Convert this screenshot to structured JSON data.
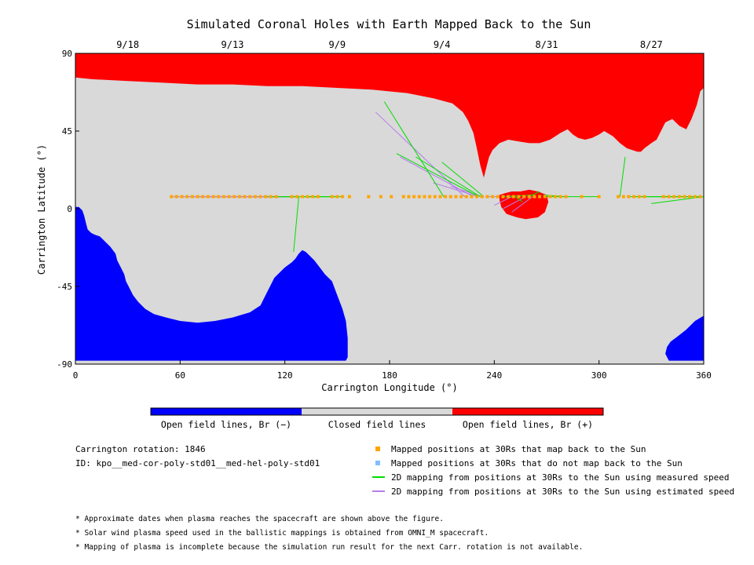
{
  "chart_data": {
    "type": "map",
    "title": "Simulated Coronal Holes with Earth Mapped Back to the Sun",
    "xlabel": "Carrington Longitude (°)",
    "ylabel": "Carrington Latitude (°)",
    "xlim": [
      0,
      360
    ],
    "ylim": [
      -90,
      90
    ],
    "x_ticks": [
      "0",
      "60",
      "120",
      "180",
      "240",
      "300",
      "360"
    ],
    "y_ticks": [
      "90",
      "45",
      "0",
      "-45",
      "-90"
    ],
    "top_dates": [
      {
        "label": "9/18",
        "lon": 30
      },
      {
        "label": "9/13",
        "lon": 90
      },
      {
        "label": "9/9",
        "lon": 150
      },
      {
        "label": "9/4",
        "lon": 210
      },
      {
        "label": "8/31",
        "lon": 270
      },
      {
        "label": "8/27",
        "lon": 330
      }
    ],
    "colorbar": [
      "Open field lines, Br (−)",
      "Closed field lines",
      "Open field lines, Br (+)"
    ],
    "colors": {
      "negative": "#0000ff",
      "closed": "#d9d9d9",
      "positive": "#ff0000",
      "mapped": "#ffa500",
      "unmapped": "#7fbfff",
      "measured": "#00dd00",
      "estimated": "#b57eea"
    },
    "regions": {
      "positive_open": [
        [
          [
            0,
            90
          ],
          [
            360,
            90
          ],
          [
            360,
            70
          ],
          [
            358,
            68
          ],
          [
            356,
            60
          ],
          [
            353,
            52
          ],
          [
            350,
            46
          ],
          [
            346,
            48
          ],
          [
            342,
            52
          ],
          [
            338,
            50
          ],
          [
            335,
            44
          ],
          [
            333,
            40
          ],
          [
            330,
            38
          ],
          [
            326,
            35
          ],
          [
            324,
            33
          ],
          [
            322,
            33
          ],
          [
            316,
            35
          ],
          [
            312,
            38
          ],
          [
            308,
            42
          ],
          [
            303,
            45
          ],
          [
            300,
            43
          ],
          [
            296,
            41
          ],
          [
            292,
            40
          ],
          [
            288,
            41
          ],
          [
            285,
            43
          ],
          [
            282,
            46
          ],
          [
            278,
            44
          ],
          [
            272,
            40
          ],
          [
            266,
            38
          ],
          [
            260,
            38
          ],
          [
            254,
            39
          ],
          [
            248,
            40
          ],
          [
            243,
            38
          ],
          [
            239,
            34
          ],
          [
            237,
            30
          ],
          [
            236,
            26
          ],
          [
            235,
            22
          ],
          [
            234,
            18
          ],
          [
            232,
            25
          ],
          [
            230,
            35
          ],
          [
            228,
            44
          ],
          [
            225,
            51
          ],
          [
            222,
            56
          ],
          [
            216,
            61
          ],
          [
            205,
            64
          ],
          [
            190,
            67
          ],
          [
            170,
            69
          ],
          [
            150,
            70
          ],
          [
            130,
            71
          ],
          [
            110,
            71
          ],
          [
            90,
            72
          ],
          [
            70,
            72
          ],
          [
            50,
            73
          ],
          [
            30,
            74
          ],
          [
            10,
            75
          ],
          [
            0,
            76
          ]
        ],
        [
          [
            243,
            8
          ],
          [
            246,
            9
          ],
          [
            250,
            10
          ],
          [
            255,
            10
          ],
          [
            260,
            11
          ],
          [
            265,
            10
          ],
          [
            270,
            8
          ],
          [
            271,
            4
          ],
          [
            269,
            -2
          ],
          [
            265,
            -5
          ],
          [
            258,
            -6
          ],
          [
            253,
            -5
          ],
          [
            247,
            -3
          ],
          [
            244,
            1
          ],
          [
            243,
            5
          ]
        ]
      ],
      "negative_open": [
        [
          [
            0,
            1
          ],
          [
            2,
            1
          ],
          [
            4,
            -1
          ],
          [
            5,
            -4
          ],
          [
            6,
            -8
          ],
          [
            7,
            -12
          ],
          [
            9,
            -14
          ],
          [
            11,
            -15
          ],
          [
            14,
            -16
          ],
          [
            16,
            -18
          ],
          [
            20,
            -22
          ],
          [
            23,
            -26
          ],
          [
            24,
            -30
          ],
          [
            26,
            -34
          ],
          [
            28,
            -38
          ],
          [
            29,
            -42
          ],
          [
            31,
            -46
          ],
          [
            33,
            -50
          ],
          [
            36,
            -54
          ],
          [
            40,
            -58
          ],
          [
            45,
            -61
          ],
          [
            52,
            -63
          ],
          [
            60,
            -65
          ],
          [
            70,
            -66
          ],
          [
            80,
            -65
          ],
          [
            90,
            -63
          ],
          [
            100,
            -60
          ],
          [
            106,
            -56
          ],
          [
            108,
            -52
          ],
          [
            110,
            -48
          ],
          [
            112,
            -44
          ],
          [
            114,
            -40
          ],
          [
            117,
            -37
          ],
          [
            120,
            -34
          ],
          [
            124,
            -31
          ],
          [
            126,
            -29
          ],
          [
            128,
            -26
          ],
          [
            130,
            -24
          ],
          [
            132,
            -25
          ],
          [
            134,
            -27
          ],
          [
            137,
            -30
          ],
          [
            140,
            -34
          ],
          [
            143,
            -38
          ],
          [
            147,
            -42
          ],
          [
            150,
            -50
          ],
          [
            153,
            -58
          ],
          [
            155,
            -65
          ],
          [
            156,
            -75
          ],
          [
            156,
            -86
          ],
          [
            155,
            -88
          ],
          [
            0,
            -88
          ]
        ],
        [
          [
            338,
            -84
          ],
          [
            339,
            -80
          ],
          [
            341,
            -77
          ],
          [
            345,
            -74
          ],
          [
            350,
            -70
          ],
          [
            355,
            -65
          ],
          [
            360,
            -62
          ],
          [
            360,
            -88
          ],
          [
            340,
            -88
          ]
        ]
      ]
    },
    "mapped_points": {
      "lat": 7,
      "lon": [
        55,
        58,
        61,
        64,
        67,
        70,
        73,
        76,
        79,
        82,
        85,
        88,
        91,
        94,
        97,
        100,
        103,
        106,
        109,
        112,
        115,
        124,
        127,
        130,
        133,
        136,
        139,
        147,
        150,
        153,
        157,
        168,
        175,
        181,
        188,
        191,
        194,
        197,
        200,
        203,
        206,
        209,
        212,
        215,
        218,
        221,
        224,
        227,
        230,
        233,
        236,
        239,
        242,
        245,
        248,
        251,
        254,
        257,
        260,
        263,
        266,
        269,
        272,
        275,
        278,
        281,
        290,
        300,
        311,
        314,
        317,
        320,
        323,
        326,
        337,
        340,
        343,
        346,
        349,
        352,
        355,
        358
      ]
    },
    "field_lines": {
      "measured": [
        [
          125,
          128,
          -25
        ],
        [
          125,
          110,
          7
        ],
        [
          126,
          114,
          7
        ],
        [
          127,
          118,
          7
        ],
        [
          128,
          125,
          7
        ],
        [
          129,
          127,
          7
        ],
        [
          130,
          130,
          7
        ],
        [
          130,
          134,
          7
        ],
        [
          131,
          138,
          7
        ],
        [
          131,
          142,
          7
        ],
        [
          132,
          146,
          7
        ],
        [
          132,
          150,
          7
        ],
        [
          133,
          154,
          7
        ],
        [
          177,
          211,
          62
        ],
        [
          184,
          231,
          32
        ],
        [
          195,
          232,
          30
        ],
        [
          210,
          234,
          27
        ],
        [
          263,
          245,
          8
        ],
        [
          266,
          260,
          10
        ],
        [
          268,
          280,
          8
        ],
        [
          270,
          300,
          7
        ],
        [
          256,
          252,
          4
        ],
        [
          315,
          312,
          30
        ],
        [
          316,
          318,
          7
        ],
        [
          318,
          322,
          7
        ],
        [
          320,
          326,
          7
        ],
        [
          324,
          345,
          7
        ],
        [
          326,
          355,
          7
        ],
        [
          328,
          358,
          7
        ],
        [
          330,
          360,
          3
        ]
      ],
      "estimated": [
        [
          123,
          55,
          7
        ],
        [
          123,
          62,
          7
        ],
        [
          123,
          70,
          7
        ],
        [
          124,
          78,
          7
        ],
        [
          124,
          86,
          7
        ],
        [
          124,
          94,
          7
        ],
        [
          124,
          102,
          7
        ],
        [
          125,
          108,
          7
        ],
        [
          118,
          71,
          7
        ],
        [
          118,
          80,
          7
        ],
        [
          172,
          223,
          56
        ],
        [
          186,
          228,
          30
        ],
        [
          205,
          231,
          15
        ],
        [
          215,
          233,
          13
        ],
        [
          235,
          243,
          7
        ],
        [
          240,
          250,
          2
        ],
        [
          245,
          258,
          0
        ],
        [
          250,
          262,
          -2
        ]
      ]
    }
  },
  "info": {
    "rotation": "Carrington rotation: 1846",
    "id": "ID: kpo__med-cor-poly-std01__med-hel-poly-std01"
  },
  "legend": {
    "mapped": "Mapped positions at 30Rs that map back to the Sun",
    "unmapped": "Mapped positions at 30Rs that do not map back to the Sun",
    "measured": "2D mapping from positions at 30Rs to the Sun using measured speed",
    "estimated": "2D mapping from positions at 30Rs to the Sun using estimated speed"
  },
  "notes": [
    "* Approximate dates when plasma reaches the spacecraft are shown above the figure.",
    "* Solar wind plasma speed used in the ballistic mappings is obtained from OMNI_M spacecraft.",
    "* Mapping of plasma is incomplete because the simulation run result for the next Carr. rotation is not available."
  ]
}
